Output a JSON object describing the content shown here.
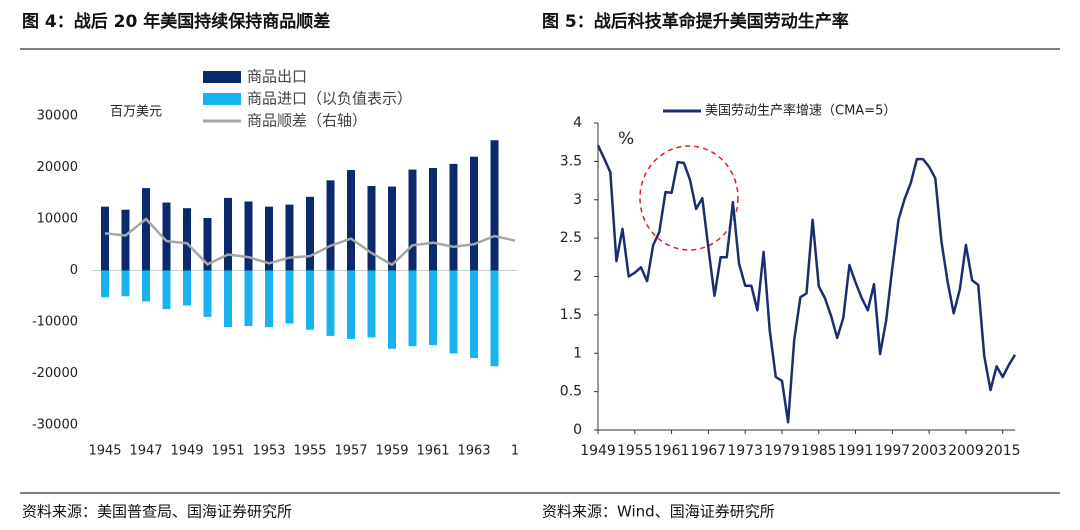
{
  "chart_data": [
    {
      "type": "bar",
      "title": "图 4：战后 20 年美国持续保持商品顺差",
      "source": "资料来源：美国普查局、国海证券研究所",
      "unit": "百万美元",
      "categories": [
        "1945",
        null,
        "1947",
        null,
        "1949",
        null,
        "1951",
        null,
        "1953",
        null,
        "1955",
        null,
        "1957",
        null,
        "1959",
        null,
        "1961",
        null,
        "1963",
        null,
        "1"
      ],
      "series": [
        {
          "name": "商品出口",
          "color": "#0b2a6b",
          "values": [
            12400,
            11800,
            16000,
            13200,
            12100,
            10200,
            14100,
            13400,
            12400,
            12800,
            14300,
            17500,
            19500,
            16400,
            16300,
            19600,
            19900,
            20700,
            22100,
            25300,
            null
          ]
        },
        {
          "name": "商品进口（以负值表示）",
          "color": "#19b4f0",
          "values": [
            -5200,
            -5000,
            -6000,
            -7500,
            -6800,
            -9000,
            -11000,
            -10800,
            -11000,
            -10300,
            -11500,
            -12700,
            -13300,
            -13000,
            -15200,
            -14700,
            -14500,
            -16100,
            -17000,
            -18600,
            null
          ]
        },
        {
          "name": "商品顺差（右轴）",
          "color": "#a6a6a6",
          "type": "line",
          "axis": "y2",
          "values": [
            7200,
            6800,
            10000,
            5700,
            5300,
            1200,
            3100,
            2600,
            1400,
            2500,
            2800,
            4800,
            6200,
            3400,
            1100,
            4900,
            5400,
            4600,
            5100,
            6700,
            5800
          ]
        }
      ],
      "ylim": [
        -30000,
        30000
      ],
      "yticks": [
        -30000,
        -20000,
        -10000,
        0,
        10000,
        20000,
        30000
      ],
      "y2lim": [
        -30000,
        30000
      ]
    },
    {
      "type": "line",
      "title": "图 5：战后科技革命提升美国劳动生产率",
      "source": "资料来源：Wind、国海证券研究所",
      "unit": "%",
      "x": [
        1949,
        1950,
        1951,
        1952,
        1953,
        1954,
        1955,
        1956,
        1957,
        1958,
        1959,
        1960,
        1961,
        1962,
        1963,
        1964,
        1965,
        1966,
        1967,
        1968,
        1969,
        1970,
        1971,
        1972,
        1973,
        1974,
        1975,
        1976,
        1977,
        1978,
        1979,
        1980,
        1981,
        1982,
        1983,
        1984,
        1985,
        1986,
        1987,
        1988,
        1989,
        1990,
        1991,
        1992,
        1993,
        1994,
        1995,
        1996,
        1997,
        1998,
        1999,
        2000,
        2001,
        2002,
        2003,
        2004,
        2005,
        2006,
        2007,
        2008,
        2009,
        2010,
        2011,
        2012,
        2013,
        2014,
        2015,
        2016,
        2017
      ],
      "series": [
        {
          "name": "美国劳动生产率增速（CMA=5）",
          "color": "#1c2e6e",
          "values": [
            3.71,
            3.54,
            3.36,
            2.2,
            2.62,
            2.0,
            2.05,
            2.12,
            1.94,
            2.41,
            2.58,
            3.1,
            3.09,
            3.49,
            3.48,
            3.26,
            2.88,
            3.02,
            2.37,
            1.75,
            2.25,
            2.25,
            2.97,
            2.17,
            1.88,
            1.88,
            1.56,
            2.32,
            1.3,
            0.69,
            0.64,
            0.1,
            1.17,
            1.73,
            1.78,
            2.74,
            1.87,
            1.72,
            1.49,
            1.2,
            1.46,
            2.15,
            1.92,
            1.72,
            1.56,
            1.9,
            0.99,
            1.43,
            2.12,
            2.74,
            3.01,
            3.22,
            3.53,
            3.53,
            3.43,
            3.28,
            2.46,
            1.94,
            1.52,
            1.83,
            2.41,
            1.95,
            1.89,
            0.96,
            0.52,
            0.83,
            0.69,
            0.85,
            0.98
          ]
        }
      ],
      "xlim": [
        1949,
        2017
      ],
      "xticks": [
        1949,
        1955,
        1961,
        1967,
        1973,
        1979,
        1985,
        1991,
        1997,
        2003,
        2009,
        2015
      ],
      "ylim": [
        0,
        4
      ],
      "yticks": [
        0,
        0.5,
        1,
        1.5,
        2,
        2.5,
        3,
        3.5,
        4
      ]
    }
  ]
}
